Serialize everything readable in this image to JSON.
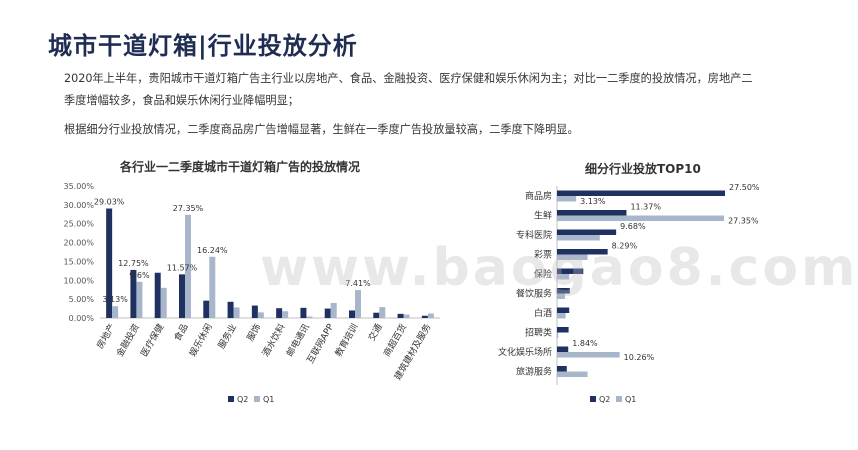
{
  "page": {
    "title": "城市干道灯箱|行业投放分析",
    "paragraph_1": "2020年上半年，贵阳城市干道灯箱广告主行业以房地产、食品、金融投资、医疗保健和娱乐休闲为主；对比一二季度的投放情况，房地产二季度增幅较多，食品和娱乐休闲行业降幅明显；",
    "paragraph_2": "根据细分行业投放情况，二季度商品房广告增幅显著，生鲜在一季度广告投放量较高，二季度下降明显。",
    "watermark": "www.baogao8.com"
  },
  "colors": {
    "q2": "#1f3160",
    "q1": "#a8b6cc"
  },
  "chart_data": [
    {
      "type": "bar",
      "title": "各行业一二季度城市干道灯箱广告的投放情况",
      "categories": [
        "房地产",
        "金融投资",
        "医疗保健",
        "食品",
        "娱乐休闲",
        "服务业",
        "服饰",
        "酒水饮料",
        "邮电通讯",
        "互联网APP",
        "教育培训",
        "交通",
        "商超百货",
        "建筑建材及服务"
      ],
      "series": [
        {
          "name": "Q2",
          "values": [
            29.03,
            12.75,
            12.0,
            11.57,
            4.6,
            4.3,
            3.3,
            2.6,
            2.7,
            2.5,
            2.0,
            1.4,
            1.1,
            0.6
          ]
        },
        {
          "name": "Q1",
          "values": [
            3.13,
            9.6,
            8.0,
            27.35,
            16.24,
            2.8,
            1.5,
            1.8,
            0.4,
            4.0,
            7.41,
            2.9,
            0.9,
            1.2
          ]
        }
      ],
      "data_labels": [
        {
          "text": "29.03%",
          "category": 0,
          "series": 0
        },
        {
          "text": "3.13%",
          "category": 0,
          "series": 1
        },
        {
          "text": "12.75%",
          "category": 1,
          "series": 0
        },
        {
          "text": "9.6%",
          "category": 1,
          "series": 1
        },
        {
          "text": "11.57%",
          "category": 3,
          "series": 0
        },
        {
          "text": "27.35%",
          "category": 3,
          "series": 1
        },
        {
          "text": "16.24%",
          "category": 4,
          "series": 1
        },
        {
          "text": "7.41%",
          "category": 10,
          "series": 1
        }
      ],
      "yticks": [
        "0.00%",
        "5.00%",
        "10.00%",
        "15.00%",
        "20.00%",
        "25.00%",
        "30.00%",
        "35.00%"
      ],
      "ylim": [
        0,
        35
      ],
      "legend": {
        "position": "bottom",
        "items": [
          "Q2",
          "Q1"
        ]
      }
    },
    {
      "type": "bar",
      "orientation": "horizontal",
      "title": "细分行业投放TOP10",
      "categories": [
        "商品房",
        "生鲜",
        "专科医院",
        "彩票",
        "保险",
        "餐饮服务",
        "白酒",
        "招聘类",
        "文化娱乐场所",
        "旅游服务"
      ],
      "series": [
        {
          "name": "Q2",
          "values": [
            27.5,
            11.37,
            9.68,
            8.29,
            4.3,
            2.1,
            2.0,
            1.9,
            1.84,
            1.6
          ]
        },
        {
          "name": "Q1",
          "values": [
            3.13,
            27.35,
            7.0,
            5.0,
            2.0,
            1.3,
            1.4,
            0.2,
            10.26,
            5.0
          ]
        }
      ],
      "data_labels": [
        {
          "text": "27.50%",
          "category": 0,
          "series": 0
        },
        {
          "text": "3.13%",
          "category": 0,
          "series": 1
        },
        {
          "text": "11.37%",
          "category": 1,
          "series": 0
        },
        {
          "text": "27.35%",
          "category": 1,
          "series": 1
        },
        {
          "text": "9.68%",
          "category": 2,
          "series": 0
        },
        {
          "text": "8.29%",
          "category": 3,
          "series": 0
        },
        {
          "text": "1.84%",
          "category": 8,
          "series": 0
        },
        {
          "text": "10.26%",
          "category": 8,
          "series": 1
        }
      ],
      "xlim": [
        0,
        27.5
      ],
      "legend": {
        "position": "bottom",
        "items": [
          "Q2",
          "Q1"
        ]
      }
    }
  ]
}
